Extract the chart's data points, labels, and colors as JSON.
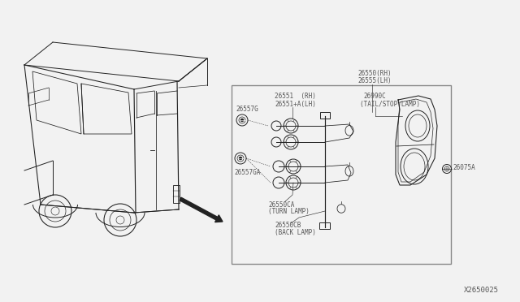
{
  "bg_color": "#f2f2f2",
  "diagram_number": "X2650025",
  "label_color": "#555555",
  "line_color": "#222222",
  "box_color": "#888888",
  "labels": {
    "26557G": "26557G",
    "26557GA": "26557GA",
    "26551_rh": "26551  (RH)",
    "26551_lh": "26551+A(LH)",
    "26990C": "26990C",
    "26990C_desc": "(TAIL/STOP LAMP)",
    "26550CA": "26550CA",
    "26550CA_desc": "(TURN LAMP)",
    "26550CB": "26550CB",
    "26550CB_desc": "(BACK LAMP)",
    "26550_rh": "26550(RH)",
    "26555_lh": "26555(LH)",
    "26075A": "26075A",
    "diag_num": "X2650025"
  }
}
